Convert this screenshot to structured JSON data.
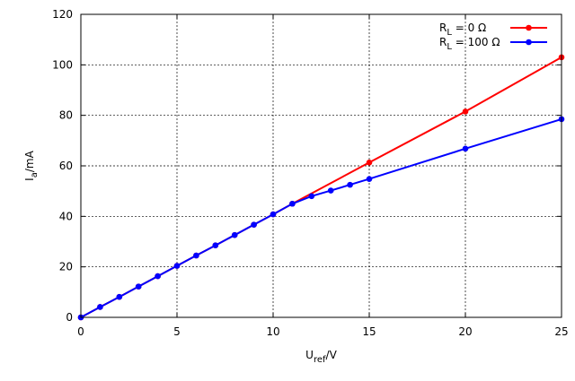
{
  "chart_data": {
    "type": "line",
    "xlabel": {
      "main": "U",
      "sub": "ref",
      "unit": "/V"
    },
    "ylabel": {
      "main": "I",
      "sub": "a",
      "unit": "/mA"
    },
    "xlim": [
      0,
      25
    ],
    "ylim": [
      0,
      120
    ],
    "xticks": [
      0,
      5,
      10,
      15,
      20,
      25
    ],
    "yticks": [
      0,
      20,
      40,
      60,
      80,
      100,
      120
    ],
    "grid": "dashed",
    "legend_position": "top-right",
    "series": [
      {
        "legend_prefix": "R",
        "legend_sub": "L",
        "legend_value": " =     0 Ω",
        "color": "#ff0000",
        "x": [
          0,
          1,
          2,
          3,
          4,
          5,
          6,
          7,
          8,
          9,
          10,
          11,
          15,
          20,
          25
        ],
        "y": [
          0,
          4.1,
          8.1,
          12.2,
          16.3,
          20.4,
          24.5,
          28.5,
          32.6,
          36.7,
          40.8,
          45.0,
          61.3,
          81.5,
          103.0
        ]
      },
      {
        "legend_prefix": "R",
        "legend_sub": "L",
        "legend_value": " = 100 Ω",
        "color": "#0000ff",
        "x": [
          0,
          1,
          2,
          3,
          4,
          5,
          6,
          7,
          8,
          9,
          10,
          11,
          12,
          13,
          14,
          15,
          20,
          25
        ],
        "y": [
          0,
          4.1,
          8.1,
          12.2,
          16.3,
          20.4,
          24.5,
          28.5,
          32.6,
          36.7,
          40.8,
          45.0,
          48.0,
          50.2,
          52.5,
          54.8,
          66.8,
          78.5
        ]
      }
    ]
  }
}
